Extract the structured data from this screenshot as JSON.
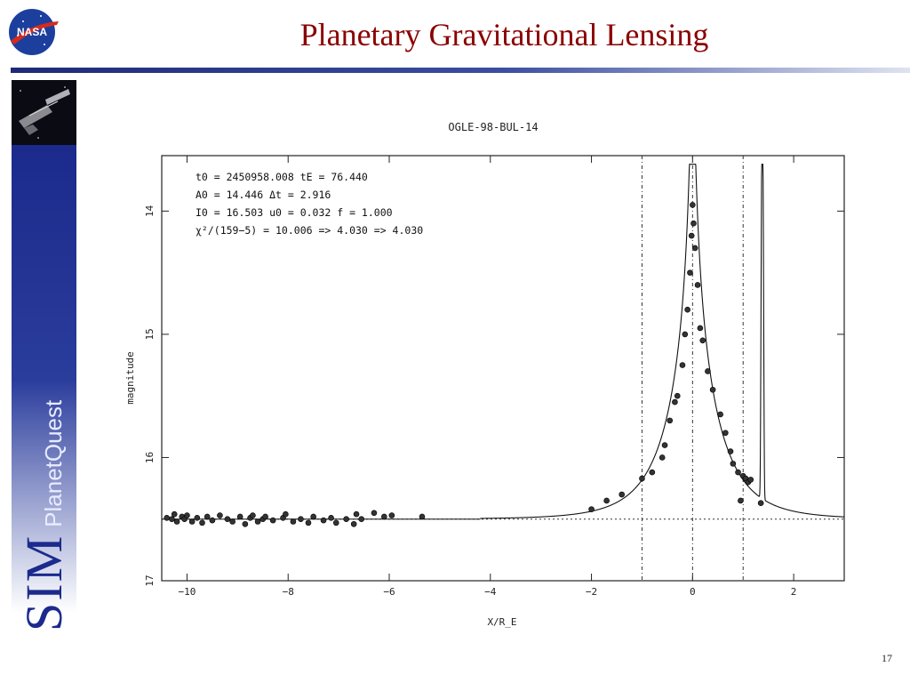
{
  "slide": {
    "title": "Planetary Gravitational Lensing",
    "page_number": "17"
  },
  "logo": {
    "text": "NASA",
    "icon": "nasa-meatball-icon"
  },
  "sidebar": {
    "brand": "SIM",
    "product": "PlanetQuest",
    "image_icon": "spacecraft-image"
  },
  "chart_data": {
    "type": "scatter",
    "title": "OGLE-98-BUL-14",
    "xlabel": "X/R_E",
    "ylabel": "magnitude",
    "xlim": [
      -10.5,
      3.0
    ],
    "ylim": [
      17,
      13.55
    ],
    "y_inverted": true,
    "x_ticks": [
      -10,
      -8,
      -6,
      -4,
      -2,
      0,
      2
    ],
    "y_ticks": [
      14,
      15,
      16,
      17
    ],
    "annotations": [
      "t0 = 2450958.008   tE = 76.440",
      "A0 = 14.446  Δt = 2.916",
      "I0 = 16.503   u0 = 0.032 f = 1.000",
      "χ²/(159−5) = 10.006 => 4.030 => 4.030"
    ],
    "vertical_lines": [
      -1,
      0,
      1
    ],
    "baseline_magnitude": 16.5,
    "series": [
      {
        "points": [
          [
            -10.4,
            16.49
          ],
          [
            -10.3,
            16.5
          ],
          [
            -10.25,
            16.46
          ],
          [
            -10.2,
            16.52
          ],
          [
            -10.1,
            16.48
          ],
          [
            -10.05,
            16.5
          ],
          [
            -10.0,
            16.47
          ],
          [
            -9.9,
            16.52
          ],
          [
            -9.8,
            16.49
          ],
          [
            -9.7,
            16.53
          ],
          [
            -9.6,
            16.48
          ],
          [
            -9.5,
            16.51
          ],
          [
            -9.35,
            16.47
          ],
          [
            -9.2,
            16.5
          ],
          [
            -9.1,
            16.52
          ],
          [
            -8.95,
            16.48
          ],
          [
            -8.85,
            16.54
          ],
          [
            -8.75,
            16.49
          ],
          [
            -8.7,
            16.47
          ],
          [
            -8.6,
            16.52
          ],
          [
            -8.5,
            16.5
          ],
          [
            -8.45,
            16.48
          ],
          [
            -8.3,
            16.51
          ],
          [
            -8.1,
            16.49
          ],
          [
            -8.05,
            16.46
          ],
          [
            -7.9,
            16.52
          ],
          [
            -7.75,
            16.5
          ],
          [
            -7.6,
            16.53
          ],
          [
            -7.5,
            16.48
          ],
          [
            -7.3,
            16.51
          ],
          [
            -7.15,
            16.49
          ],
          [
            -7.05,
            16.53
          ],
          [
            -6.85,
            16.5
          ],
          [
            -6.7,
            16.54
          ],
          [
            -6.65,
            16.46
          ],
          [
            -6.55,
            16.5
          ],
          [
            -6.3,
            16.45
          ],
          [
            -6.1,
            16.48
          ],
          [
            -5.95,
            16.47
          ],
          [
            -5.35,
            16.48
          ],
          [
            -2.0,
            16.42
          ],
          [
            -1.7,
            16.35
          ],
          [
            -1.4,
            16.3
          ],
          [
            -1.0,
            16.17
          ],
          [
            -0.8,
            16.12
          ],
          [
            -0.6,
            16.0
          ],
          [
            -0.55,
            15.9
          ],
          [
            -0.45,
            15.7
          ],
          [
            -0.35,
            15.55
          ],
          [
            -0.3,
            15.5
          ],
          [
            -0.2,
            15.25
          ],
          [
            -0.15,
            15.0
          ],
          [
            -0.1,
            14.8
          ],
          [
            -0.05,
            14.5
          ],
          [
            -0.02,
            14.2
          ],
          [
            0.0,
            13.95
          ],
          [
            0.02,
            14.1
          ],
          [
            0.05,
            14.3
          ],
          [
            0.1,
            14.6
          ],
          [
            0.15,
            14.95
          ],
          [
            0.2,
            15.05
          ],
          [
            0.3,
            15.3
          ],
          [
            0.4,
            15.45
          ],
          [
            0.55,
            15.65
          ],
          [
            0.65,
            15.8
          ],
          [
            0.75,
            15.95
          ],
          [
            0.8,
            16.05
          ],
          [
            0.9,
            16.12
          ],
          [
            1.0,
            16.15
          ],
          [
            1.05,
            16.17
          ],
          [
            1.1,
            16.2
          ],
          [
            1.15,
            16.18
          ],
          [
            0.95,
            16.35
          ],
          [
            1.35,
            16.37
          ]
        ]
      }
    ]
  }
}
